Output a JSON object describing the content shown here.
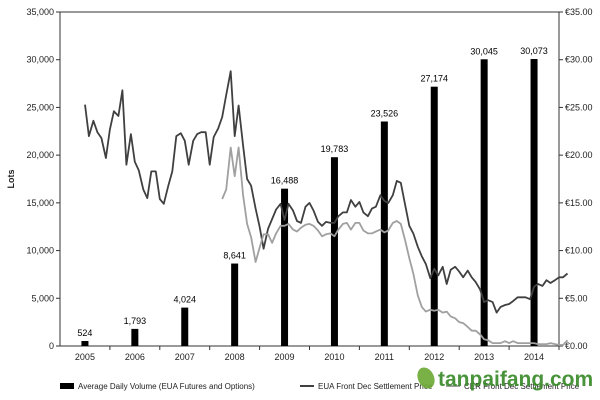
{
  "chart_data": {
    "type": "bar+line",
    "ylabel": "Lots",
    "ylim": [
      0,
      35000
    ],
    "y2lim": [
      0,
      35
    ],
    "y_ticks": [
      "0",
      "5,000",
      "10,000",
      "15,000",
      "20,000",
      "25,000",
      "30,000",
      "35,000"
    ],
    "y2_ticks": [
      "€0.00",
      "€5.00",
      "€10.00",
      "€15.00",
      "€20.00",
      "€25.00",
      "€30.00",
      "€35.00"
    ],
    "categories": [
      "2005",
      "2006",
      "2007",
      "2008",
      "2009",
      "2010",
      "2011",
      "2012",
      "2013",
      "2014"
    ],
    "bar_series": {
      "name": "Average Daily Volume (EUA Futures and Options)",
      "values": [
        524,
        1793,
        4024,
        8641,
        16488,
        19783,
        23526,
        27174,
        30045,
        30073
      ],
      "labels": [
        "524",
        "1,793",
        "4,024",
        "8,641",
        "16,488",
        "19,783",
        "23,526",
        "27,174",
        "30,045",
        "30,073"
      ],
      "color": "#000000"
    },
    "line_series": [
      {
        "name": "EUA Front Dec Settlement Price",
        "color": "#404040",
        "points": [
          [
            2005.0,
            25.3
          ],
          [
            2005.08,
            22.0
          ],
          [
            2005.17,
            23.6
          ],
          [
            2005.25,
            22.4
          ],
          [
            2005.33,
            21.8
          ],
          [
            2005.42,
            19.7
          ],
          [
            2005.5,
            22.7
          ],
          [
            2005.58,
            24.6
          ],
          [
            2005.67,
            24.1
          ],
          [
            2005.75,
            26.8
          ],
          [
            2005.83,
            19.0
          ],
          [
            2005.92,
            22.2
          ],
          [
            2006.0,
            19.3
          ],
          [
            2006.08,
            18.4
          ],
          [
            2006.17,
            16.4
          ],
          [
            2006.25,
            15.5
          ],
          [
            2006.33,
            18.3
          ],
          [
            2006.42,
            18.3
          ],
          [
            2006.5,
            15.4
          ],
          [
            2006.58,
            14.9
          ],
          [
            2006.67,
            16.8
          ],
          [
            2006.75,
            18.3
          ],
          [
            2006.83,
            22.0
          ],
          [
            2006.92,
            22.3
          ],
          [
            2007.0,
            21.5
          ],
          [
            2007.08,
            19.0
          ],
          [
            2007.17,
            21.5
          ],
          [
            2007.25,
            22.2
          ],
          [
            2007.33,
            22.4
          ],
          [
            2007.42,
            22.4
          ],
          [
            2007.5,
            19.0
          ],
          [
            2007.58,
            21.9
          ],
          [
            2007.67,
            22.8
          ],
          [
            2007.75,
            24.0
          ],
          [
            2007.83,
            26.3
          ],
          [
            2007.92,
            28.8
          ],
          [
            2008.0,
            22.0
          ],
          [
            2008.08,
            25.2
          ],
          [
            2008.17,
            21.0
          ],
          [
            2008.25,
            17.5
          ],
          [
            2008.33,
            16.8
          ],
          [
            2008.42,
            14.4
          ],
          [
            2008.5,
            12.5
          ],
          [
            2008.58,
            10.2
          ],
          [
            2008.67,
            12.3
          ],
          [
            2008.75,
            13.3
          ],
          [
            2008.83,
            14.3
          ],
          [
            2008.92,
            14.9
          ],
          [
            2009.0,
            13.2
          ],
          [
            2009.08,
            14.9
          ],
          [
            2009.17,
            14.2
          ],
          [
            2009.25,
            13.1
          ],
          [
            2009.33,
            12.9
          ],
          [
            2009.42,
            14.6
          ],
          [
            2009.5,
            15.0
          ],
          [
            2009.58,
            14.2
          ],
          [
            2009.67,
            13.0
          ],
          [
            2009.75,
            12.6
          ],
          [
            2009.83,
            13.0
          ],
          [
            2009.92,
            12.9
          ],
          [
            2010.0,
            12.9
          ],
          [
            2010.08,
            13.6
          ],
          [
            2010.17,
            14.0
          ],
          [
            2010.25,
            14.0
          ],
          [
            2010.33,
            15.3
          ],
          [
            2010.42,
            14.6
          ],
          [
            2010.5,
            15.1
          ],
          [
            2010.58,
            14.0
          ],
          [
            2010.67,
            13.6
          ],
          [
            2010.75,
            14.4
          ],
          [
            2010.83,
            14.6
          ],
          [
            2010.92,
            15.8
          ],
          [
            2011.0,
            15.2
          ],
          [
            2011.08,
            15.0
          ],
          [
            2011.17,
            15.8
          ],
          [
            2011.25,
            17.3
          ],
          [
            2011.33,
            17.1
          ],
          [
            2011.42,
            14.7
          ],
          [
            2011.5,
            12.6
          ],
          [
            2011.58,
            11.8
          ],
          [
            2011.67,
            10.4
          ],
          [
            2011.75,
            9.4
          ],
          [
            2011.83,
            8.6
          ],
          [
            2011.92,
            7.1
          ],
          [
            2012.0,
            8.1
          ],
          [
            2012.08,
            7.4
          ],
          [
            2012.17,
            8.3
          ],
          [
            2012.25,
            6.5
          ],
          [
            2012.33,
            8.0
          ],
          [
            2012.42,
            8.3
          ],
          [
            2012.5,
            7.8
          ],
          [
            2012.58,
            7.2
          ],
          [
            2012.67,
            7.9
          ],
          [
            2012.75,
            7.2
          ],
          [
            2012.83,
            6.7
          ],
          [
            2012.92,
            5.9
          ],
          [
            2013.0,
            4.6
          ],
          [
            2013.08,
            4.8
          ],
          [
            2013.17,
            4.6
          ],
          [
            2013.25,
            3.5
          ],
          [
            2013.33,
            4.1
          ],
          [
            2013.42,
            4.3
          ],
          [
            2013.5,
            4.4
          ],
          [
            2013.58,
            4.7
          ],
          [
            2013.67,
            5.1
          ],
          [
            2013.75,
            5.1
          ],
          [
            2013.83,
            5.1
          ],
          [
            2013.92,
            4.9
          ],
          [
            2014.0,
            6.2
          ],
          [
            2014.08,
            6.5
          ],
          [
            2014.17,
            6.3
          ],
          [
            2014.25,
            6.9
          ],
          [
            2014.33,
            6.6
          ],
          [
            2014.42,
            6.9
          ],
          [
            2014.5,
            7.2
          ],
          [
            2014.58,
            7.2
          ],
          [
            2014.67,
            7.6
          ]
        ]
      },
      {
        "name": "CER Front Dec Settlement Price",
        "color": "#a0a0a0",
        "points": [
          [
            2007.75,
            15.4
          ],
          [
            2007.83,
            16.4
          ],
          [
            2007.92,
            20.8
          ],
          [
            2008.0,
            17.8
          ],
          [
            2008.08,
            20.8
          ],
          [
            2008.17,
            15.8
          ],
          [
            2008.25,
            12.8
          ],
          [
            2008.33,
            11.4
          ],
          [
            2008.42,
            8.8
          ],
          [
            2008.5,
            10.3
          ],
          [
            2008.58,
            11.7
          ],
          [
            2008.67,
            11.7
          ],
          [
            2008.75,
            10.8
          ],
          [
            2008.83,
            11.8
          ],
          [
            2008.92,
            12.6
          ],
          [
            2009.0,
            12.6
          ],
          [
            2009.08,
            12.8
          ],
          [
            2009.17,
            12.2
          ],
          [
            2009.25,
            12.0
          ],
          [
            2009.33,
            12.4
          ],
          [
            2009.42,
            12.7
          ],
          [
            2009.5,
            12.8
          ],
          [
            2009.58,
            12.6
          ],
          [
            2009.67,
            12.1
          ],
          [
            2009.75,
            11.5
          ],
          [
            2009.83,
            11.7
          ],
          [
            2009.92,
            11.8
          ],
          [
            2010.0,
            11.5
          ],
          [
            2010.08,
            12.2
          ],
          [
            2010.17,
            12.8
          ],
          [
            2010.25,
            12.9
          ],
          [
            2010.33,
            12.2
          ],
          [
            2010.42,
            12.9
          ],
          [
            2010.5,
            12.9
          ],
          [
            2010.58,
            12.1
          ],
          [
            2010.67,
            11.8
          ],
          [
            2010.75,
            11.8
          ],
          [
            2010.83,
            12.0
          ],
          [
            2010.92,
            12.2
          ],
          [
            2011.0,
            11.9
          ],
          [
            2011.08,
            12.1
          ],
          [
            2011.17,
            12.9
          ],
          [
            2011.25,
            13.1
          ],
          [
            2011.33,
            12.8
          ],
          [
            2011.42,
            11.0
          ],
          [
            2011.5,
            9.2
          ],
          [
            2011.58,
            7.6
          ],
          [
            2011.67,
            5.3
          ],
          [
            2011.75,
            4.1
          ],
          [
            2011.83,
            3.6
          ],
          [
            2011.92,
            3.8
          ],
          [
            2012.0,
            3.7
          ],
          [
            2012.08,
            3.8
          ],
          [
            2012.17,
            3.5
          ],
          [
            2012.25,
            3.6
          ],
          [
            2012.33,
            3.1
          ],
          [
            2012.42,
            2.9
          ],
          [
            2012.5,
            2.5
          ],
          [
            2012.58,
            2.4
          ],
          [
            2012.67,
            2.0
          ],
          [
            2012.75,
            1.6
          ],
          [
            2012.83,
            1.6
          ],
          [
            2012.92,
            1.2
          ],
          [
            2013.0,
            0.7
          ],
          [
            2013.08,
            0.6
          ],
          [
            2013.17,
            0.3
          ],
          [
            2013.25,
            0.3
          ],
          [
            2013.33,
            0.3
          ],
          [
            2013.42,
            0.5
          ],
          [
            2013.5,
            0.3
          ],
          [
            2013.58,
            0.5
          ],
          [
            2013.67,
            0.3
          ],
          [
            2013.75,
            0.3
          ],
          [
            2013.83,
            0.3
          ],
          [
            2013.92,
            0.3
          ],
          [
            2014.0,
            0.3
          ],
          [
            2014.08,
            0.2
          ],
          [
            2014.17,
            0.2
          ],
          [
            2014.25,
            0.2
          ],
          [
            2014.33,
            0.3
          ],
          [
            2014.42,
            0.2
          ],
          [
            2014.5,
            0.1
          ],
          [
            2014.58,
            0.1
          ],
          [
            2014.67,
            0.6
          ]
        ]
      }
    ],
    "legend": {
      "placement": "bottom",
      "items": [
        "Average Daily Volume (EUA Futures and Options)",
        "EUA Front Dec Settlement Price",
        "CER Front Dec Settlement Price"
      ]
    },
    "grid": false
  },
  "watermark": {
    "text": "tanpaifang.com",
    "leaf_color": "#6aa832"
  }
}
